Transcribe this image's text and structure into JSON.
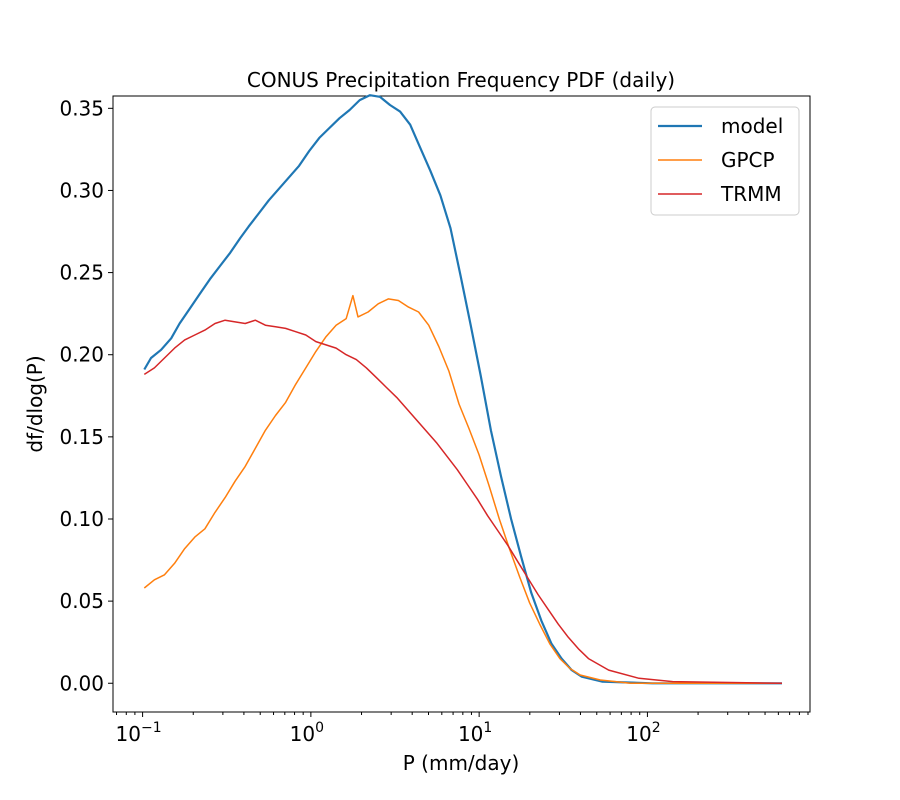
{
  "chart_data": {
    "type": "line",
    "title": "CONUS Precipitation Frequency PDF (daily)",
    "xlabel": "P (mm/day)",
    "ylabel": "df/dlog(P)",
    "xscale": "log",
    "xlim": [
      0.0667,
      925
    ],
    "ylim": [
      -0.0175,
      0.3575
    ],
    "xticks": [
      {
        "value": 0.1,
        "base": "10",
        "exp": "−1"
      },
      {
        "value": 1,
        "base": "10",
        "exp": "0"
      },
      {
        "value": 10,
        "base": "10",
        "exp": "1"
      },
      {
        "value": 100,
        "base": "10",
        "exp": "2"
      }
    ],
    "yticks": [
      {
        "value": 0.0,
        "label": "0.00"
      },
      {
        "value": 0.05,
        "label": "0.05"
      },
      {
        "value": 0.1,
        "label": "0.10"
      },
      {
        "value": 0.15,
        "label": "0.15"
      },
      {
        "value": 0.2,
        "label": "0.20"
      },
      {
        "value": 0.25,
        "label": "0.25"
      },
      {
        "value": 0.3,
        "label": "0.30"
      },
      {
        "value": 0.35,
        "label": "0.35"
      }
    ],
    "grid": false,
    "legend": {
      "position": "top-right"
    },
    "series": [
      {
        "name": "model",
        "color": "#1f77b4",
        "log10x": [
          -0.99,
          -0.95,
          -0.89,
          -0.83,
          -0.78,
          -0.72,
          -0.66,
          -0.6,
          -0.54,
          -0.48,
          -0.42,
          -0.37,
          -0.31,
          -0.25,
          -0.19,
          -0.13,
          -0.07,
          -0.01,
          0.05,
          0.11,
          0.17,
          0.23,
          0.29,
          0.35,
          0.41,
          0.47,
          0.53,
          0.59,
          0.65,
          0.71,
          0.77,
          0.83,
          0.89,
          0.95,
          1.01,
          1.07,
          1.13,
          1.19,
          1.25,
          1.31,
          1.37,
          1.43,
          1.49,
          1.55,
          1.61,
          1.73,
          2.03,
          2.8
        ],
        "y": [
          0.191,
          0.198,
          0.203,
          0.21,
          0.219,
          0.228,
          0.237,
          0.246,
          0.254,
          0.262,
          0.271,
          0.278,
          0.286,
          0.294,
          0.301,
          0.308,
          0.315,
          0.324,
          0.332,
          0.338,
          0.344,
          0.349,
          0.355,
          0.358,
          0.357,
          0.352,
          0.348,
          0.34,
          0.326,
          0.312,
          0.297,
          0.277,
          0.248,
          0.218,
          0.187,
          0.154,
          0.126,
          0.1,
          0.077,
          0.055,
          0.038,
          0.024,
          0.015,
          0.008,
          0.004,
          0.001,
          0.0,
          0.0
        ]
      },
      {
        "name": "GPCP",
        "color": "#ff7f0e",
        "log10x": [
          -0.99,
          -0.93,
          -0.87,
          -0.81,
          -0.75,
          -0.69,
          -0.63,
          -0.57,
          -0.51,
          -0.45,
          -0.39,
          -0.33,
          -0.27,
          -0.21,
          -0.15,
          -0.09,
          -0.03,
          0.03,
          0.09,
          0.15,
          0.21,
          0.25,
          0.28,
          0.34,
          0.4,
          0.46,
          0.52,
          0.58,
          0.64,
          0.7,
          0.76,
          0.82,
          0.88,
          0.94,
          1.0,
          1.06,
          1.12,
          1.18,
          1.24,
          1.3,
          1.36,
          1.42,
          1.48,
          1.54,
          1.6,
          1.72,
          1.9,
          2.1,
          2.8
        ],
        "y": [
          0.058,
          0.063,
          0.066,
          0.073,
          0.082,
          0.089,
          0.094,
          0.104,
          0.113,
          0.123,
          0.132,
          0.143,
          0.154,
          0.163,
          0.171,
          0.182,
          0.192,
          0.202,
          0.211,
          0.218,
          0.222,
          0.236,
          0.223,
          0.226,
          0.231,
          0.234,
          0.233,
          0.229,
          0.226,
          0.218,
          0.205,
          0.19,
          0.17,
          0.155,
          0.139,
          0.12,
          0.1,
          0.082,
          0.065,
          0.049,
          0.036,
          0.024,
          0.015,
          0.009,
          0.005,
          0.002,
          0.0,
          0.0,
          0.0
        ]
      },
      {
        "name": "TRMM",
        "color": "#d62728",
        "log10x": [
          -0.99,
          -0.93,
          -0.87,
          -0.81,
          -0.75,
          -0.69,
          -0.63,
          -0.57,
          -0.51,
          -0.45,
          -0.39,
          -0.33,
          -0.27,
          -0.21,
          -0.15,
          -0.09,
          -0.03,
          0.03,
          0.09,
          0.15,
          0.21,
          0.27,
          0.33,
          0.39,
          0.45,
          0.51,
          0.57,
          0.63,
          0.69,
          0.75,
          0.81,
          0.87,
          0.93,
          0.99,
          1.05,
          1.11,
          1.17,
          1.23,
          1.29,
          1.35,
          1.41,
          1.47,
          1.53,
          1.59,
          1.65,
          1.77,
          1.95,
          2.15,
          2.8
        ],
        "y": [
          0.188,
          0.192,
          0.198,
          0.204,
          0.209,
          0.212,
          0.215,
          0.219,
          0.221,
          0.22,
          0.219,
          0.221,
          0.218,
          0.217,
          0.216,
          0.214,
          0.212,
          0.208,
          0.206,
          0.204,
          0.2,
          0.197,
          0.192,
          0.186,
          0.18,
          0.174,
          0.167,
          0.16,
          0.153,
          0.146,
          0.138,
          0.13,
          0.121,
          0.112,
          0.102,
          0.093,
          0.084,
          0.074,
          0.064,
          0.054,
          0.045,
          0.036,
          0.028,
          0.021,
          0.015,
          0.008,
          0.003,
          0.001,
          0.0
        ]
      }
    ]
  }
}
